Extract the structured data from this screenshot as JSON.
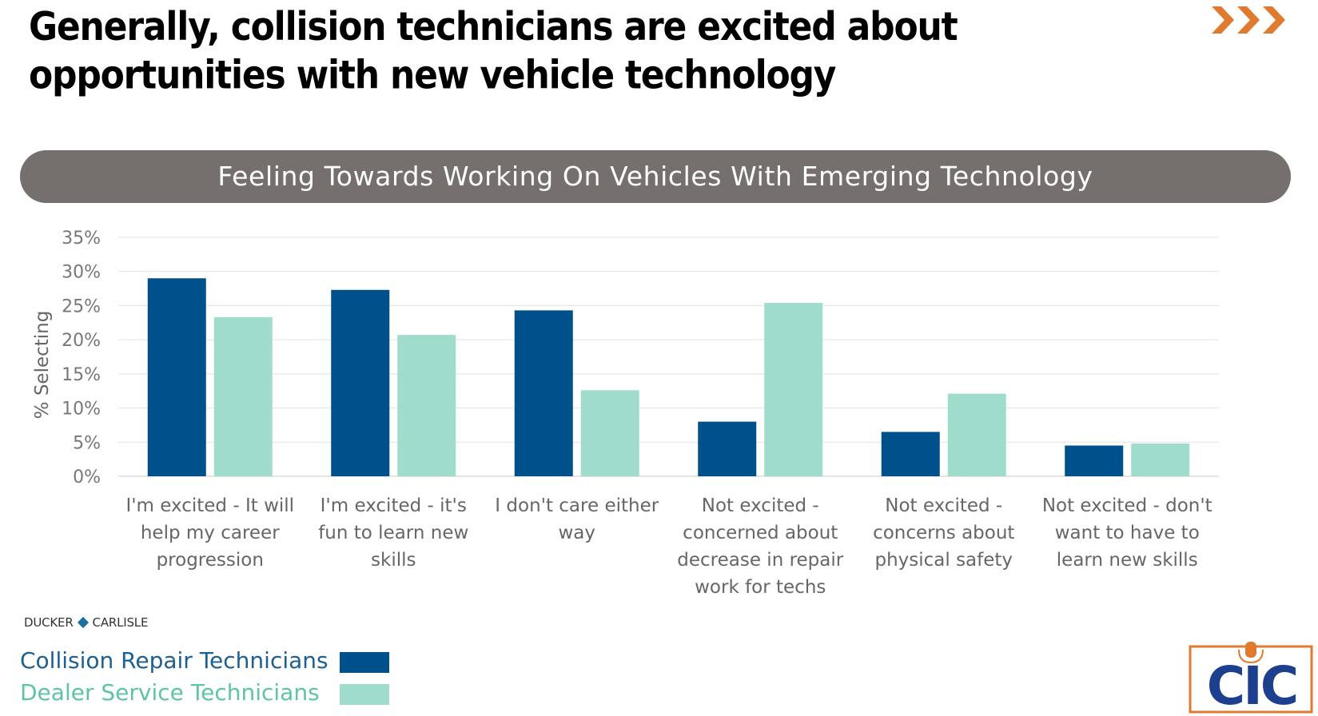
{
  "headline": "Generally, collision technicians are excited about opportunities with new vehicle technology",
  "header_icon": "triple-chevron-arrows",
  "brand": {
    "left": "DUCKER",
    "right": "CARLISLE"
  },
  "logo": {
    "text": "CIC",
    "icon": "microphone-icon"
  },
  "colors": {
    "collision": "#00508b",
    "dealer": "#9fdccb",
    "accent": "#e07a2e",
    "banner": "#75706e",
    "dealer_text": "#5fc4a6",
    "collision_text": "#1c5f93"
  },
  "chart_data": {
    "type": "bar",
    "title": "Feeling Towards Working On Vehicles With Emerging Technology",
    "xlabel": "",
    "ylabel": "% Selecting",
    "ylim": [
      0,
      35
    ],
    "yticks": [
      "0%",
      "5%",
      "10%",
      "15%",
      "20%",
      "25%",
      "30%",
      "35%"
    ],
    "grid": true,
    "legend_position": "bottom-left",
    "categories": [
      "I'm excited - It will help my career progression",
      "I'm excited - it's fun to learn new skills",
      "I don't care either way",
      "Not excited - concerned about decrease in repair work for techs",
      "Not excited - concerns about physical safety",
      "Not excited - don't want to have to learn new skills"
    ],
    "series": [
      {
        "name": "Collision Repair Technicians",
        "values": [
          29,
          27.3,
          24.3,
          8,
          6.5,
          4.5
        ]
      },
      {
        "name": "Dealer Service Technicians",
        "values": [
          23.3,
          20.7,
          12.6,
          25.4,
          12.1,
          4.8
        ]
      }
    ]
  }
}
